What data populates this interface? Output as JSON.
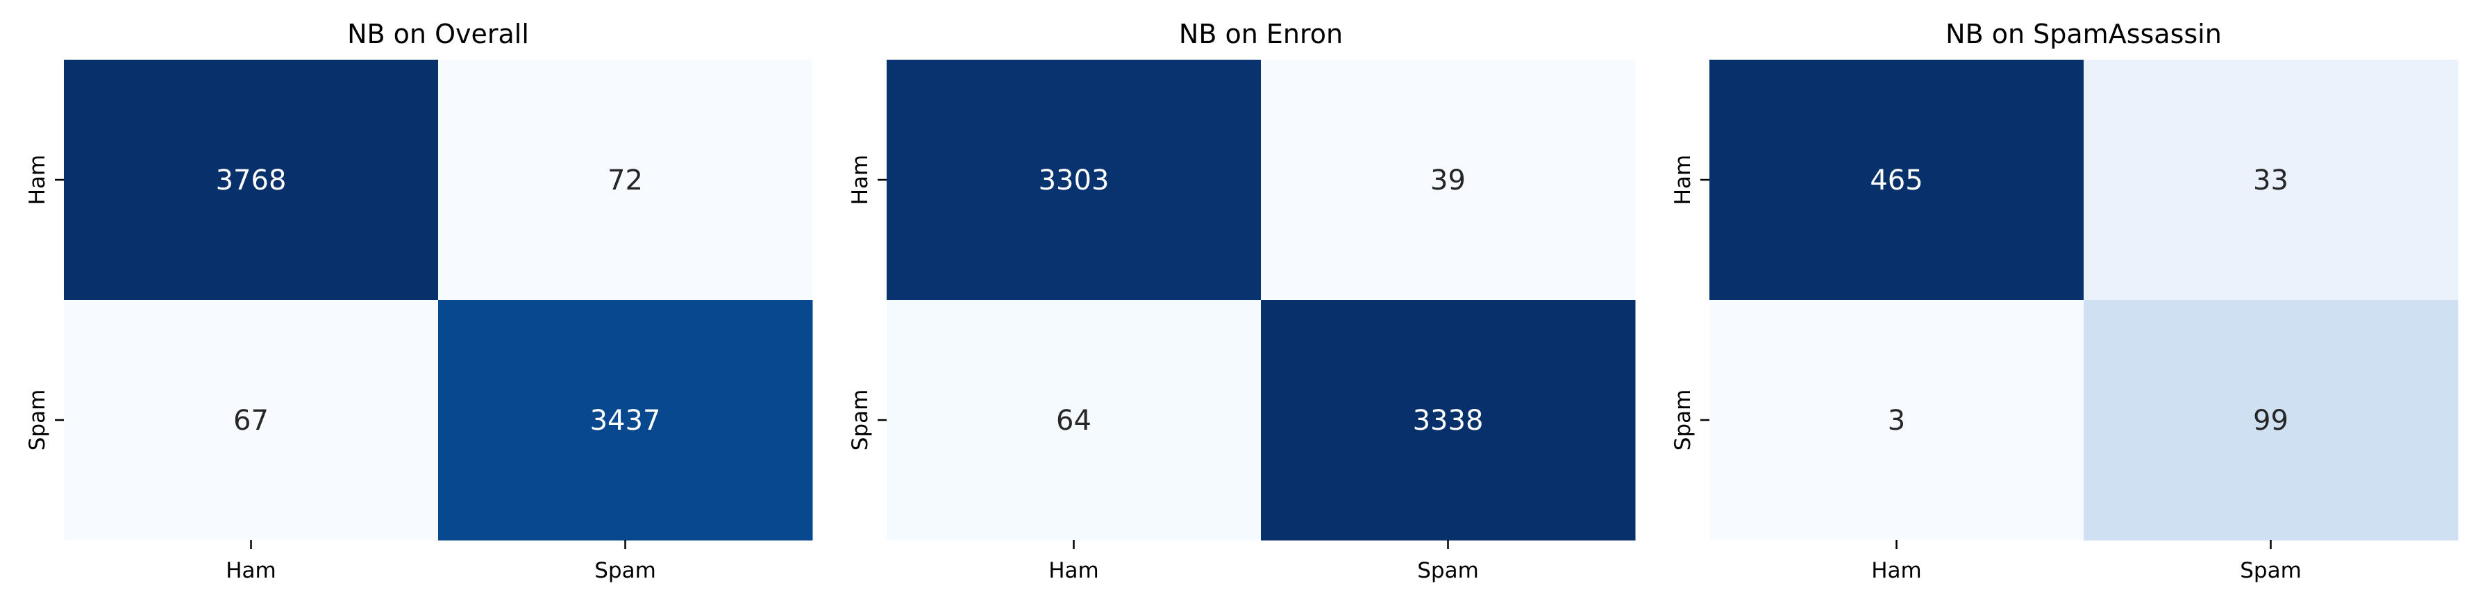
{
  "chart_data": [
    {
      "type": "heatmap",
      "title": "NB on Overall",
      "x_categories": [
        "Ham",
        "Spam"
      ],
      "y_categories": [
        "Ham",
        "Spam"
      ],
      "values": [
        [
          3768,
          72
        ],
        [
          67,
          3437
        ]
      ],
      "colormap": "Blues",
      "colorbar": false,
      "annotations": true
    },
    {
      "type": "heatmap",
      "title": "NB on Enron",
      "x_categories": [
        "Ham",
        "Spam"
      ],
      "y_categories": [
        "Ham",
        "Spam"
      ],
      "values": [
        [
          3303,
          39
        ],
        [
          64,
          3338
        ]
      ],
      "colormap": "Blues",
      "colorbar": false,
      "annotations": true
    },
    {
      "type": "heatmap",
      "title": "NB on SpamAssassin",
      "x_categories": [
        "Ham",
        "Spam"
      ],
      "y_categories": [
        "Ham",
        "Spam"
      ],
      "values": [
        [
          465,
          33
        ],
        [
          3,
          99
        ]
      ],
      "colormap": "Blues",
      "colorbar": false,
      "annotations": true
    }
  ],
  "colors": {
    "low": "#f7fbff",
    "high": "#08306b",
    "text_on_dark": "#ffffff",
    "text_on_light": "#262626"
  }
}
